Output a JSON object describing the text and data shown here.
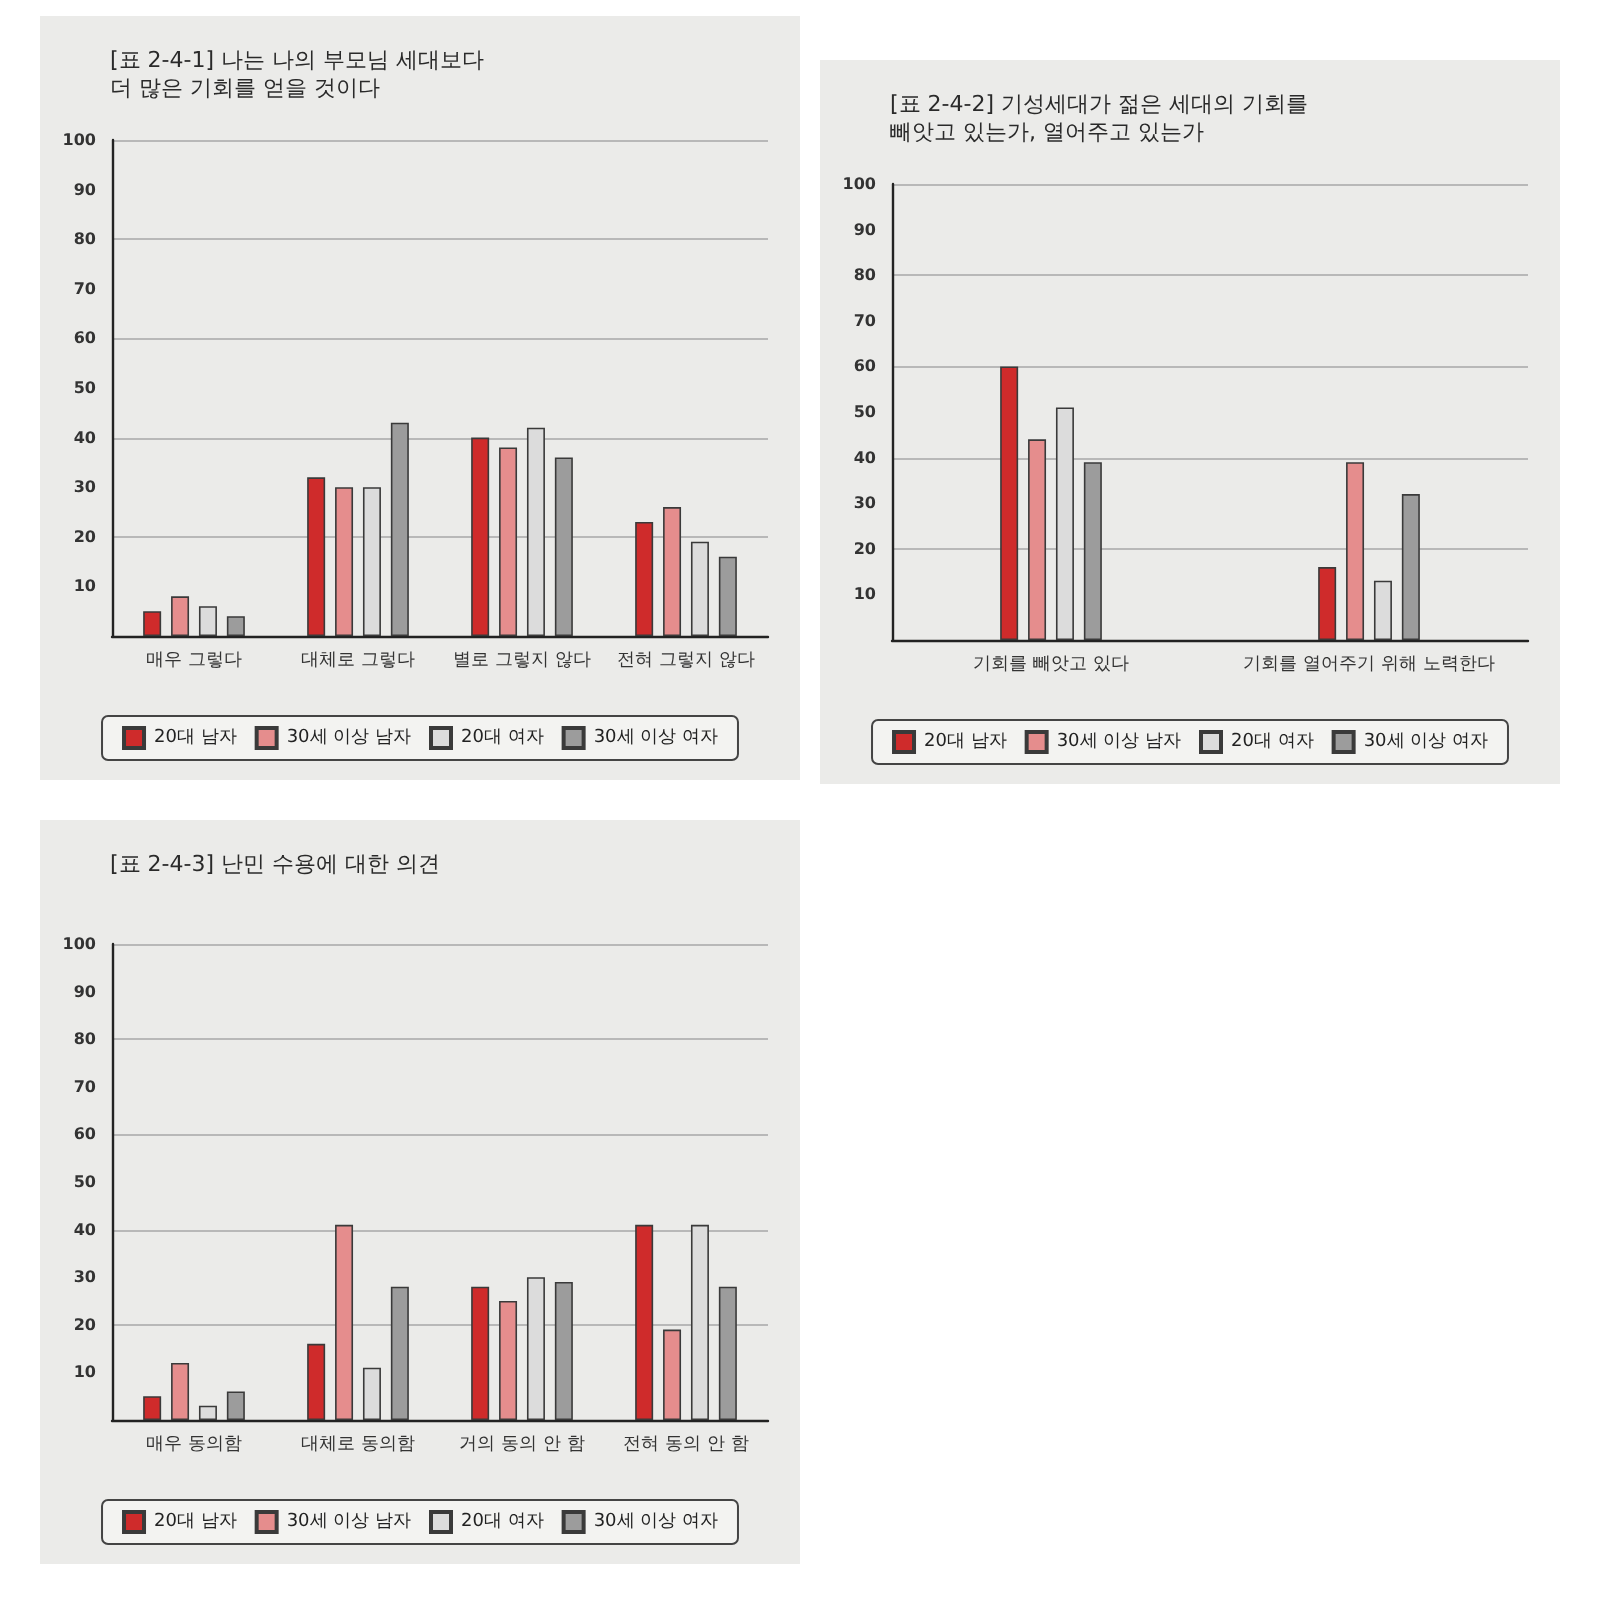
{
  "chart_data": [
    {
      "type": "bar",
      "title": "[표 2-4-1] 나는 나의 부모님 세대보다\n더 많은 기회를 얻을 것이다",
      "categories": [
        "매우 그렇다",
        "대체로 그렇다",
        "별로 그렇지 않다",
        "전혀 그렇지 않다"
      ],
      "series": [
        {
          "name": "20대 남자",
          "color": "#cf2b2b",
          "values": [
            5,
            32,
            40,
            23
          ]
        },
        {
          "name": "30세 이상 남자",
          "color": "#e58d8d",
          "values": [
            8,
            30,
            38,
            26
          ]
        },
        {
          "name": "20대 여자",
          "color": "#dcdcdc",
          "values": [
            6,
            30,
            42,
            19
          ]
        },
        {
          "name": "30세 이상 여자",
          "color": "#9c9c9c",
          "values": [
            4,
            43,
            36,
            16
          ]
        }
      ],
      "ylim": [
        0,
        100
      ],
      "yticks": [
        10,
        20,
        30,
        40,
        50,
        60,
        70,
        80,
        90,
        100
      ],
      "grid": "y",
      "legend": "bottom"
    },
    {
      "type": "bar",
      "title": "[표 2-4-2] 기성세대가 젊은 세대의 기회를\n빼앗고 있는가, 열어주고 있는가",
      "categories": [
        "기회를 빼앗고 있다",
        "기회를 열어주기 위해 노력한다"
      ],
      "series": [
        {
          "name": "20대 남자",
          "color": "#cf2b2b",
          "values": [
            60,
            16
          ]
        },
        {
          "name": "30세 이상 남자",
          "color": "#e58d8d",
          "values": [
            44,
            39
          ]
        },
        {
          "name": "20대 여자",
          "color": "#dcdcdc",
          "values": [
            51,
            13
          ]
        },
        {
          "name": "30세 이상 여자",
          "color": "#9c9c9c",
          "values": [
            39,
            32
          ]
        }
      ],
      "ylim": [
        0,
        100
      ],
      "yticks": [
        10,
        20,
        30,
        40,
        50,
        60,
        70,
        80,
        90,
        100
      ],
      "grid": "y",
      "legend": "bottom"
    },
    {
      "type": "bar",
      "title": "[표 2-4-3] 난민 수용에 대한 의견",
      "categories": [
        "매우 동의함",
        "대체로 동의함",
        "거의 동의 안 함",
        "전혀 동의 안 함"
      ],
      "series": [
        {
          "name": "20대 남자",
          "color": "#cf2b2b",
          "values": [
            5,
            16,
            28,
            41
          ]
        },
        {
          "name": "30세 이상 남자",
          "color": "#e58d8d",
          "values": [
            12,
            41,
            25,
            19
          ]
        },
        {
          "name": "20대 여자",
          "color": "#dcdcdc",
          "values": [
            3,
            11,
            30,
            41
          ]
        },
        {
          "name": "30세 이상 여자",
          "color": "#9c9c9c",
          "values": [
            6,
            28,
            29,
            28
          ]
        }
      ],
      "ylim": [
        0,
        100
      ],
      "yticks": [
        10,
        20,
        30,
        40,
        50,
        60,
        70,
        80,
        90,
        100
      ],
      "grid": "y",
      "legend": "bottom"
    }
  ]
}
